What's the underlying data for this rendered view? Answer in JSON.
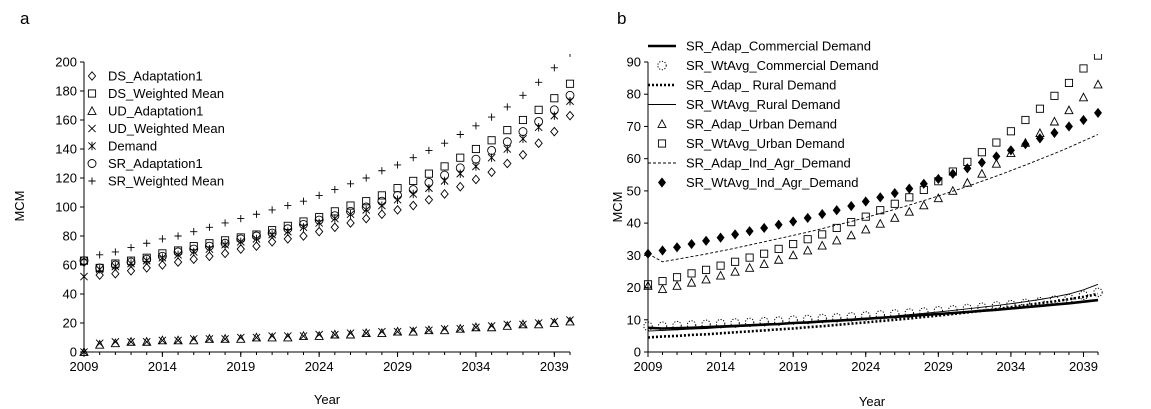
{
  "chart_data": [
    {
      "panel": "a",
      "type": "scatter",
      "xlabel": "Year",
      "ylabel": "MCM",
      "xlim": [
        2009,
        2040
      ],
      "ylim": [
        0,
        200
      ],
      "xticks": [
        2009,
        2014,
        2019,
        2024,
        2029,
        2034,
        2039
      ],
      "yticks": [
        0,
        20,
        40,
        60,
        80,
        100,
        120,
        140,
        160,
        180,
        200
      ],
      "legend": "top-left",
      "x": [
        2009,
        2010,
        2011,
        2012,
        2013,
        2014,
        2015,
        2016,
        2017,
        2018,
        2019,
        2020,
        2021,
        2022,
        2023,
        2024,
        2025,
        2026,
        2027,
        2028,
        2029,
        2030,
        2031,
        2032,
        2033,
        2034,
        2035,
        2036,
        2037,
        2038,
        2039,
        2040
      ],
      "series": [
        {
          "name": "DS_Adaptation1",
          "marker": "diamond",
          "values": [
            62,
            53,
            54,
            56,
            58,
            60,
            62,
            64,
            66,
            68,
            71,
            73,
            76,
            78,
            80,
            83,
            86,
            89,
            92,
            95,
            98,
            101,
            105,
            109,
            114,
            119,
            124,
            130,
            136,
            144,
            152,
            163
          ]
        },
        {
          "name": "DS_Weighted Mean",
          "marker": "square",
          "values": [
            63,
            58,
            61,
            63,
            65,
            68,
            70,
            73,
            75,
            77,
            79,
            81,
            84,
            87,
            90,
            93,
            97,
            101,
            104,
            108,
            113,
            118,
            123,
            128,
            134,
            140,
            146,
            153,
            160,
            167,
            175,
            185
          ]
        },
        {
          "name": "UD_Adaptation1",
          "marker": "triangle",
          "values": [
            0,
            5,
            6,
            7,
            7,
            8,
            8,
            8,
            9,
            9,
            9,
            10,
            10,
            10,
            11,
            11,
            12,
            12,
            13,
            13,
            14,
            14,
            15,
            15,
            16,
            17,
            17,
            18,
            19,
            19,
            20,
            21
          ]
        },
        {
          "name": "UD_Weighted Mean",
          "marker": "x",
          "values": [
            0,
            6,
            7,
            7,
            7,
            8,
            8,
            9,
            9,
            9,
            10,
            10,
            11,
            11,
            11,
            12,
            12,
            13,
            13,
            14,
            14,
            15,
            15,
            16,
            16,
            17,
            18,
            19,
            19,
            20,
            21,
            22
          ]
        },
        {
          "name": "Demand",
          "marker": "asterisk",
          "values": [
            52,
            57,
            59,
            61,
            63,
            65,
            67,
            69,
            71,
            74,
            76,
            78,
            81,
            83,
            86,
            89,
            92,
            95,
            98,
            101,
            105,
            109,
            113,
            118,
            123,
            128,
            134,
            140,
            147,
            155,
            163,
            173
          ]
        },
        {
          "name": "SR_Adaptation1",
          "marker": "circle",
          "values": [
            63,
            58,
            60,
            62,
            64,
            66,
            69,
            71,
            73,
            75,
            78,
            80,
            82,
            85,
            88,
            91,
            94,
            97,
            100,
            104,
            108,
            112,
            117,
            122,
            127,
            133,
            139,
            145,
            152,
            159,
            167,
            177
          ]
        },
        {
          "name": "SR_Weighted Mean",
          "marker": "plus",
          "values": [
            64,
            67,
            69,
            72,
            75,
            78,
            80,
            83,
            86,
            89,
            92,
            95,
            98,
            101,
            104,
            108,
            112,
            116,
            120,
            125,
            129,
            134,
            139,
            144,
            150,
            156,
            162,
            169,
            177,
            186,
            196,
            206
          ]
        }
      ]
    },
    {
      "panel": "b",
      "type": "scatter",
      "xlabel": "Year",
      "ylabel": "MCM",
      "xlim": [
        2009,
        2040
      ],
      "ylim": [
        0,
        90
      ],
      "xticks": [
        2009,
        2014,
        2019,
        2024,
        2029,
        2034,
        2039
      ],
      "yticks": [
        0,
        10,
        20,
        30,
        40,
        50,
        60,
        70,
        80,
        90
      ],
      "legend": "top-left",
      "x": [
        2009,
        2010,
        2011,
        2012,
        2013,
        2014,
        2015,
        2016,
        2017,
        2018,
        2019,
        2020,
        2021,
        2022,
        2023,
        2024,
        2025,
        2026,
        2027,
        2028,
        2029,
        2030,
        2031,
        2032,
        2033,
        2034,
        2035,
        2036,
        2037,
        2038,
        2039,
        2040
      ],
      "series": [
        {
          "name": "SR_Adap_Commercial Demand",
          "marker": "line-thick",
          "values": [
            7.5,
            7.3,
            7.4,
            7.5,
            7.7,
            7.9,
            8.1,
            8.3,
            8.5,
            8.7,
            9.0,
            9.2,
            9.5,
            9.7,
            10.0,
            10.3,
            10.6,
            10.9,
            11.2,
            11.5,
            11.8,
            12.1,
            12.4,
            12.8,
            13.1,
            13.5,
            13.9,
            14.3,
            14.7,
            15.1,
            15.6,
            16.1
          ]
        },
        {
          "name": "SR_WtAvg_Commercial Demand",
          "marker": "dotted-circle",
          "values": [
            8.0,
            8.0,
            8.2,
            8.4,
            8.6,
            8.8,
            9.0,
            9.2,
            9.4,
            9.6,
            9.9,
            10.1,
            10.4,
            10.6,
            10.9,
            11.2,
            11.5,
            11.8,
            12.1,
            12.4,
            12.8,
            13.1,
            13.5,
            13.9,
            14.3,
            14.7,
            15.1,
            15.6,
            16.1,
            16.6,
            17.6,
            18.5
          ]
        },
        {
          "name": "SR_Adap_ Rural Demand",
          "marker": "line-dotted-thick",
          "values": [
            4.5,
            4.8,
            5.0,
            5.3,
            5.5,
            5.8,
            6.1,
            6.4,
            6.7,
            7.0,
            7.3,
            7.7,
            8.0,
            8.4,
            8.8,
            9.2,
            9.6,
            10.0,
            10.4,
            10.9,
            11.3,
            11.8,
            12.3,
            12.8,
            13.3,
            13.9,
            14.5,
            15.1,
            15.7,
            16.4,
            17.1,
            18.0
          ]
        },
        {
          "name": "SR_WtAvg_Rural Demand",
          "marker": "line-thin",
          "values": [
            6.5,
            6.7,
            6.9,
            7.1,
            7.3,
            7.6,
            7.8,
            8.1,
            8.3,
            8.6,
            8.9,
            9.2,
            9.5,
            9.8,
            10.1,
            10.5,
            10.8,
            11.2,
            11.6,
            12.0,
            12.4,
            12.9,
            13.4,
            13.9,
            14.4,
            15.0,
            15.6,
            16.3,
            17.1,
            18.0,
            19.3,
            21.0
          ]
        },
        {
          "name": "SR_Adap_Urban Demand",
          "marker": "triangle",
          "values": [
            20.5,
            19.5,
            20.5,
            21.5,
            22.5,
            23.7,
            24.9,
            26.1,
            27.3,
            28.6,
            30.0,
            31.5,
            33.0,
            34.6,
            36.2,
            38.0,
            39.8,
            41.6,
            43.5,
            45.5,
            47.7,
            50.0,
            52.5,
            55.3,
            58.4,
            61.7,
            64.9,
            67.9,
            71.5,
            75.0,
            79.0,
            83.0
          ]
        },
        {
          "name": "SR_WtAvg_Urban Demand",
          "marker": "square",
          "values": [
            21.0,
            22.0,
            23.2,
            24.4,
            25.5,
            26.8,
            28.0,
            29.3,
            30.5,
            32.0,
            33.5,
            35.0,
            36.5,
            38.5,
            40.3,
            42.0,
            44.0,
            46.0,
            48.0,
            50.3,
            53.0,
            56.0,
            59.0,
            62.0,
            65.0,
            68.5,
            72.0,
            75.5,
            79.5,
            83.5,
            88.0,
            92.0
          ]
        },
        {
          "name": "SR_Adap_Ind_Agr_Demand",
          "marker": "line-dashed-thin",
          "values": [
            30.5,
            28.0,
            28.8,
            29.6,
            30.4,
            31.3,
            32.2,
            33.2,
            34.2,
            35.2,
            36.2,
            37.2,
            38.3,
            39.4,
            40.5,
            41.7,
            43.0,
            44.3,
            45.6,
            47.0,
            48.4,
            49.9,
            51.4,
            53.0,
            54.6,
            56.3,
            58.0,
            59.8,
            61.6,
            63.5,
            65.5,
            67.5
          ]
        },
        {
          "name": "SR_WtAvg_Ind_Agr_Demand",
          "marker": "filled-diamond",
          "values": [
            30.5,
            31.5,
            32.5,
            33.5,
            34.5,
            35.5,
            36.5,
            37.5,
            38.5,
            39.5,
            40.5,
            41.6,
            42.8,
            44.0,
            45.3,
            46.7,
            48.0,
            49.3,
            50.7,
            52.2,
            53.7,
            55.3,
            57.0,
            58.8,
            60.7,
            62.6,
            64.5,
            66.3,
            68.0,
            70.0,
            72.0,
            74.2
          ]
        }
      ]
    }
  ]
}
